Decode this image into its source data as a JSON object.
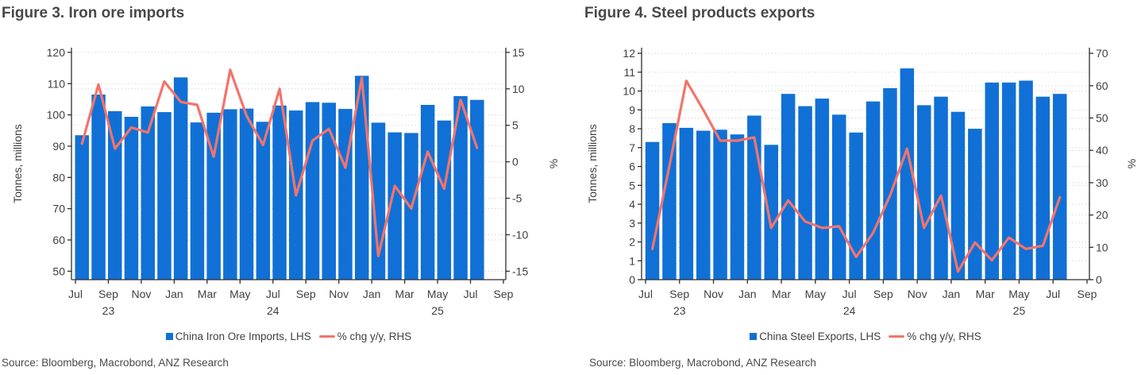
{
  "colors": {
    "bar_blue": "#1170d6",
    "line_salmon": "#f3746b",
    "axis_text": "#3f3f3f",
    "title_text": "#484848",
    "grid": "#c9d1d6",
    "axis_line": "#2e2e2e",
    "source_text": "#4a4a4a",
    "background": "#ffffff"
  },
  "figures": [
    {
      "id": "figure-3",
      "title": "Figure 3. Iron ore imports",
      "source": "Source: Bloomberg, Macrobond, ANZ Research",
      "legend": [
        {
          "marker": "bar-swatch",
          "label": "China Iron Ore Imports, LHS"
        },
        {
          "marker": "line-swatch",
          "label": "% chg y/y, RHS"
        }
      ],
      "chart_data": {
        "type": "bar",
        "subtype": "combo bar + line, dual axis",
        "categories": [
          "Jul 23",
          "Aug 23",
          "Sep 23",
          "Oct 23",
          "Nov 23",
          "Dec 23",
          "Jan 24",
          "Feb 24",
          "Mar 24",
          "Apr 24",
          "May 24",
          "Jun 24",
          "Jul 24",
          "Aug 24",
          "Sep 24",
          "Oct 24",
          "Nov 24",
          "Dec 24",
          "Jan 25",
          "Feb 25",
          "Mar 25",
          "Apr 25",
          "May 25",
          "Jun 25",
          "Jul 25"
        ],
        "x_tick_labels": [
          "Jul",
          "Sep",
          "Nov",
          "Jan",
          "Mar",
          "May",
          "Jul",
          "Sep",
          "Nov",
          "Jan",
          "Mar",
          "May",
          "Jul",
          "Sep"
        ],
        "year_labels": [
          {
            "label": "23",
            "month_index": 2
          },
          {
            "label": "24",
            "month_index": 12
          },
          {
            "label": "25",
            "month_index": 22
          }
        ],
        "series": [
          {
            "name": "China Iron Ore Imports, LHS",
            "type": "bar",
            "axis": "left",
            "values": [
              93.5,
              106.5,
              101.2,
              99.4,
              102.7,
              100.9,
              112.0,
              97.6,
              100.7,
              101.8,
              102.0,
              97.8,
              103.0,
              101.4,
              104.1,
              103.9,
              101.9,
              112.5,
              97.5,
              94.4,
              94.2,
              103.2,
              98.2,
              106.0,
              104.8
            ]
          },
          {
            "name": "% chg y/y, RHS",
            "type": "line",
            "axis": "right",
            "values": [
              2.5,
              10.6,
              1.8,
              4.7,
              4.0,
              11.0,
              8.2,
              7.8,
              0.7,
              12.6,
              6.3,
              2.3,
              10.0,
              -4.6,
              2.9,
              4.5,
              -0.8,
              11.5,
              -12.9,
              -3.3,
              -6.4,
              1.4,
              -3.7,
              8.5,
              1.9
            ]
          }
        ],
        "left_axis": {
          "title": "Tonnes, millions",
          "ticks": [
            120,
            110,
            100,
            90,
            80,
            70,
            60,
            50
          ],
          "ylim": [
            50,
            120
          ]
        },
        "right_axis": {
          "title": "%",
          "ticks": [
            15,
            10,
            5,
            0,
            -5,
            -10,
            -15
          ],
          "ylim": [
            -15,
            15
          ]
        },
        "grid": "dotted horizontal",
        "legend_position": "bottom center"
      }
    },
    {
      "id": "figure-4",
      "title": "Figure 4. Steel products exports",
      "source": "Source: Bloomberg, Macrobond, ANZ Research",
      "legend": [
        {
          "marker": "bar-swatch",
          "label": "China Steel Exports, LHS"
        },
        {
          "marker": "line-swatch",
          "label": "% chg y/y, RHS"
        }
      ],
      "chart_data": {
        "type": "bar",
        "subtype": "combo bar + line, dual axis",
        "categories": [
          "Jul 23",
          "Aug 23",
          "Sep 23",
          "Oct 23",
          "Nov 23",
          "Dec 23",
          "Jan 24",
          "Feb 24",
          "Mar 24",
          "Apr 24",
          "May 24",
          "Jun 24",
          "Jul 24",
          "Aug 24",
          "Sep 24",
          "Oct 24",
          "Nov 24",
          "Dec 24",
          "Jan 25",
          "Feb 25",
          "Mar 25",
          "Apr 25",
          "May 25",
          "Jun 25",
          "Jul 25"
        ],
        "x_tick_labels": [
          "Jul",
          "Sep",
          "Nov",
          "Jan",
          "Mar",
          "May",
          "Jul",
          "Sep",
          "Nov",
          "Jan",
          "Mar",
          "May",
          "Jul",
          "Sep"
        ],
        "year_labels": [
          {
            "label": "23",
            "month_index": 2
          },
          {
            "label": "24",
            "month_index": 12
          },
          {
            "label": "25",
            "month_index": 22
          }
        ],
        "series": [
          {
            "name": "China Steel Exports, LHS",
            "type": "bar",
            "axis": "left",
            "values": [
              7.3,
              8.3,
              8.05,
              7.9,
              7.95,
              7.7,
              8.7,
              7.15,
              9.85,
              9.2,
              9.6,
              8.75,
              7.8,
              9.45,
              10.15,
              11.2,
              9.25,
              9.7,
              8.9,
              8.0,
              10.45,
              10.45,
              10.55,
              9.7,
              9.85
            ]
          },
          {
            "name": "% chg y/y, RHS",
            "type": "line",
            "axis": "right",
            "values": [
              9.5,
              35,
              61.5,
              52.5,
              43,
              43,
              44,
              16,
              24.5,
              18,
              16,
              16.5,
              7,
              14.5,
              26,
              40.5,
              16,
              26,
              2.5,
              11.5,
              6,
              13,
              9.5,
              10.5,
              25.5
            ]
          }
        ],
        "left_axis": {
          "title": "Tonnes, millions",
          "ticks": [
            12,
            11,
            10,
            9,
            8,
            7,
            6,
            5,
            4,
            3,
            2,
            1,
            0
          ],
          "ylim": [
            0,
            12
          ]
        },
        "right_axis": {
          "title": "%",
          "ticks": [
            70,
            60,
            50,
            40,
            30,
            20,
            10,
            0
          ],
          "ylim": [
            0,
            70
          ]
        },
        "grid": "dotted horizontal",
        "legend_position": "bottom center"
      }
    }
  ]
}
